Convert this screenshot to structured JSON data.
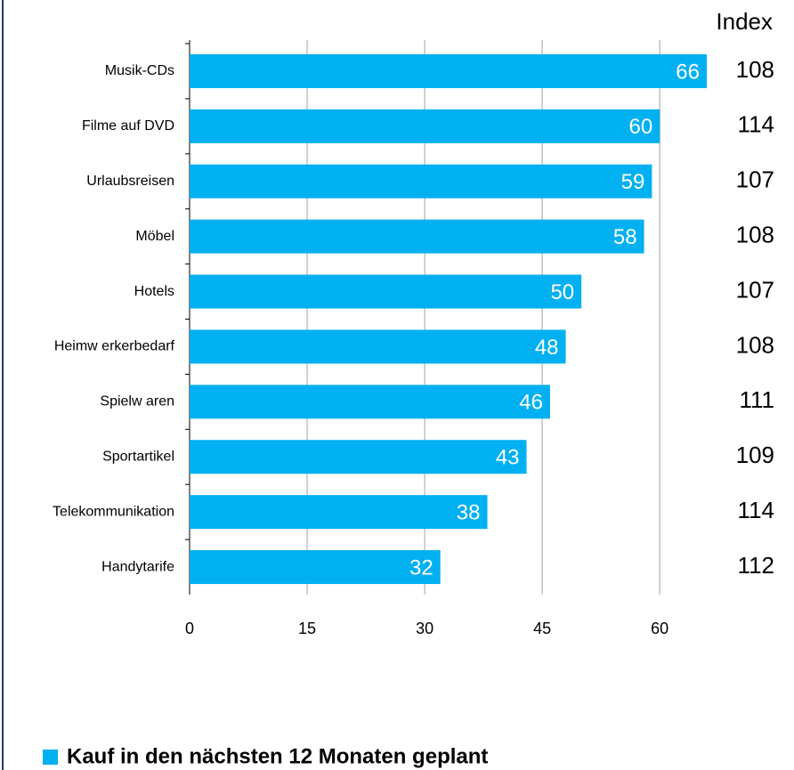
{
  "chart_data": {
    "type": "hbar",
    "categories": [
      "Musik-CDs",
      "Filme auf DVD",
      "Urlaubsreisen",
      "Möbel",
      "Hotels",
      "Heimw erkerbedarf",
      "Spielw aren",
      "Sportartikel",
      "Telekommunikation",
      "Handytarife"
    ],
    "series": [
      {
        "name": "Kauf in den nächsten 12 Monaten geplant",
        "color": "#00b0f0",
        "values": [
          66,
          60,
          59,
          58,
          50,
          48,
          46,
          43,
          38,
          32
        ]
      }
    ],
    "index_title": "Index",
    "index_values": [
      108,
      114,
      107,
      108,
      107,
      108,
      111,
      109,
      114,
      112
    ],
    "xlim": [
      0,
      66
    ],
    "xticks": [
      0,
      15,
      30,
      45,
      60
    ],
    "grid": true,
    "legend": "bottom-left"
  }
}
